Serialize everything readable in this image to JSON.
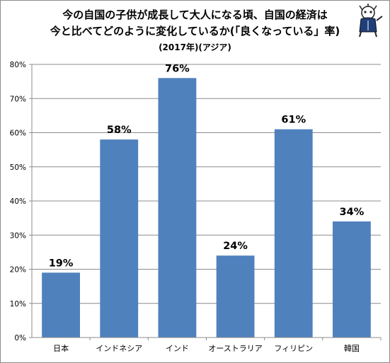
{
  "chart_data": {
    "type": "bar",
    "title_lines": [
      "今の自国の子供が成長して大人になる頃、自国の経済は",
      "今と比べてどのように変化しているか(「良くなっている」率)",
      "(2017年)(アジア)"
    ],
    "categories": [
      "日本",
      "インドネシア",
      "インド",
      "オーストラリア",
      "フィリピン",
      "韓国"
    ],
    "values": [
      19,
      58,
      76,
      24,
      61,
      34
    ],
    "value_labels": [
      "19%",
      "58%",
      "76%",
      "24%",
      "61%",
      "34%"
    ],
    "y_ticks": [
      "0%",
      "10%",
      "20%",
      "30%",
      "40%",
      "50%",
      "60%",
      "70%",
      "80%"
    ],
    "ylim": [
      0,
      80
    ],
    "bar_color": "#4f81bd",
    "grid": true,
    "legend": "none"
  }
}
